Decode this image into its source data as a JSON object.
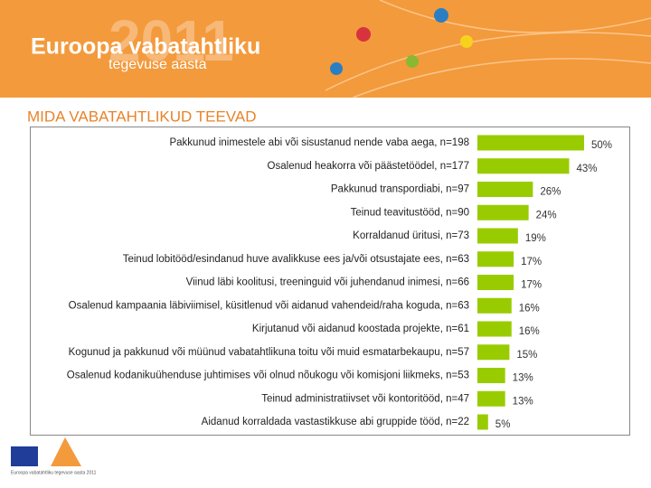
{
  "header": {
    "logo_line1": "Euroopa vabatahtliku",
    "logo_line2": "tegevuse aasta",
    "year": "2011"
  },
  "chart_data": {
    "type": "bar",
    "orientation": "horizontal",
    "title": "MIDA VABATAHTLIKUD TEEVAD",
    "color": "#99cc00",
    "categories": [
      "Pakkunud inimestele abi või sisustanud nende vaba aega, n=198",
      "Osalenud heakorra või päästetöödel, n=177",
      "Pakkunud transpordiabi, n=97",
      "Teinud teavitustööd, n=90",
      "Korraldanud üritusi, n=73",
      "Teinud lobitööd/esindanud huve avalikkuse ees ja/või otsustajate ees, n=63",
      "Viinud läbi koolitusi, treeninguid või juhendanud inimesi, n=66",
      "Osalenud kampaania läbiviimisel, küsitlenud või aidanud vahendeid/raha koguda, n=63",
      "Kirjutanud või aidanud koostada projekte, n=61",
      "Kogunud ja pakkunud või müünud vabatahtlikuna toitu või muid esmatarbekaupu, n=57",
      "Osalenud kodanikuühenduse juhtimises või olnud nõukogu või komisjoni liikmeks, n=53",
      "Teinud administratiivset või kontoritööd, n=47",
      "Aidanud korraldada vastastikkuse abi gruppide tööd, n=22"
    ],
    "values": [
      50,
      43,
      26,
      24,
      19,
      17,
      17,
      16,
      16,
      15,
      13,
      13,
      5
    ],
    "value_labels": [
      "50%",
      "43%",
      "26%",
      "24%",
      "19%",
      "17%",
      "17%",
      "16%",
      "16%",
      "15%",
      "13%",
      "13%",
      "5%"
    ]
  },
  "footer": {
    "caption": "Euroopa vabatahtliku tegevuse aasta 2011"
  }
}
